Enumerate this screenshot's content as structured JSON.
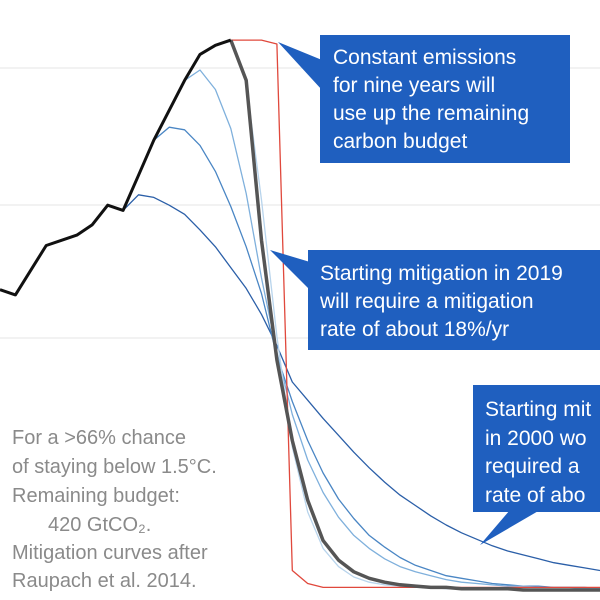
{
  "chart_data": {
    "type": "line",
    "x": [
      0,
      2,
      4,
      6,
      8,
      10,
      12,
      14,
      16,
      18,
      20,
      22,
      24,
      26,
      28,
      30,
      32,
      34,
      36,
      38,
      40,
      42,
      44,
      46,
      48,
      50,
      52,
      54,
      56,
      58,
      60,
      62,
      64,
      66,
      68,
      70,
      72,
      74,
      76,
      78
    ],
    "xlim": [
      0,
      78
    ],
    "ylim": [
      0,
      45
    ],
    "series": [
      {
        "color": "#2b5fa8",
        "width": 1.3,
        "values": [
          null,
          null,
          null,
          null,
          null,
          null,
          null,
          null,
          29.2,
          30.4,
          30.2,
          29.6,
          28.9,
          27.7,
          26.4,
          24.8,
          23.2,
          21.2,
          18.8,
          16.0,
          14.6,
          13.2,
          11.9,
          10.6,
          9.4,
          8.3,
          7.3,
          6.5,
          5.7,
          5.0,
          4.4,
          3.9,
          3.4,
          3.0,
          2.7,
          2.4,
          2.1,
          1.9,
          1.7,
          1.5
        ]
      },
      {
        "color": "#4a86c4",
        "width": 1.3,
        "values": [
          null,
          null,
          null,
          null,
          null,
          null,
          null,
          null,
          null,
          null,
          34.6,
          35.6,
          35.4,
          34.2,
          32.2,
          29.5,
          26.4,
          22.8,
          18.0,
          14.5,
          11.5,
          9.0,
          7.0,
          5.5,
          4.2,
          3.3,
          2.5,
          1.9,
          1.5,
          1.1,
          0.9,
          0.7,
          0.5,
          0.4,
          0.3,
          0.3,
          0.2,
          0.2,
          0.2,
          0.1
        ]
      },
      {
        "color": "#7fb0dc",
        "width": 1.3,
        "values": [
          null,
          null,
          null,
          null,
          null,
          null,
          null,
          null,
          null,
          null,
          null,
          null,
          39.2,
          40.0,
          38.5,
          35.5,
          30.5,
          24.0,
          18.3,
          13.5,
          10.0,
          7.5,
          5.6,
          4.2,
          3.2,
          2.4,
          1.8,
          1.4,
          1.1,
          0.8,
          0.6,
          0.5,
          0.4,
          0.3,
          0.3,
          0.2,
          0.2,
          0.2,
          0.1,
          0.1
        ]
      },
      {
        "color": "#b8d4ec",
        "width": 1.3,
        "values": [
          null,
          null,
          null,
          null,
          null,
          null,
          null,
          null,
          null,
          null,
          null,
          null,
          null,
          null,
          41.9,
          42.2,
          39.0,
          30.0,
          19.5,
          11.0,
          6.0,
          3.2,
          1.8,
          1.0,
          0.6,
          0.4,
          0.3,
          0.2,
          0.2,
          0.1,
          0.1,
          0.1,
          0.1,
          0.1,
          0.1,
          0,
          0,
          0,
          0,
          0
        ]
      },
      {
        "color": "#e0483c",
        "width": 1.3,
        "values": [
          null,
          null,
          null,
          null,
          null,
          null,
          null,
          null,
          null,
          null,
          null,
          null,
          null,
          null,
          null,
          42.3,
          42.3,
          42.3,
          42.0,
          1.5,
          0.5,
          0.2,
          0.2,
          0.2,
          0.2,
          0.2,
          0.2,
          0.2,
          0.2,
          0.2,
          0.2,
          0.2,
          0.2,
          0.2,
          0.2,
          0.2,
          0.2,
          0.2,
          0.2,
          0.2
        ]
      },
      {
        "color": "#555555",
        "width": 3.5,
        "values": [
          null,
          null,
          null,
          null,
          null,
          null,
          null,
          null,
          null,
          null,
          null,
          null,
          null,
          null,
          null,
          42.3,
          39.2,
          26.9,
          17.7,
          11.5,
          6.9,
          3.8,
          2.3,
          1.4,
          0.9,
          0.6,
          0.4,
          0.3,
          0.2,
          0.2,
          0.1,
          0.1,
          0.1,
          0.1,
          0,
          0,
          0,
          0,
          0,
          0
        ]
      },
      {
        "color": "#111111",
        "width": 3,
        "values": [
          23.1,
          22.7,
          24.6,
          26.5,
          26.9,
          27.3,
          28.1,
          29.6,
          29.2,
          31.9,
          34.6,
          36.9,
          39.2,
          41.2,
          41.9,
          42.3,
          null,
          null,
          null,
          null,
          null,
          null,
          null,
          null,
          null,
          null,
          null,
          null,
          null,
          null,
          null,
          null,
          null,
          null,
          null,
          null,
          null,
          null,
          null,
          null
        ]
      }
    ],
    "annotations": [
      [
        "Constant emissions",
        "for nine years will",
        "use up the remaining",
        "carbon budget"
      ],
      [
        "Starting mitigation in 2019",
        "will require a mitigation",
        "rate of about 18%/yr"
      ],
      [
        "Starting mit",
        "in 2000 wo",
        "required a",
        "rate of abo"
      ]
    ],
    "note": [
      "For a >66% chance",
      "of staying below 1.5°C.",
      "Remaining budget:",
      "420 GtCO₂.",
      "Mitigation curves after",
      "Raupach et al. 2014."
    ]
  }
}
